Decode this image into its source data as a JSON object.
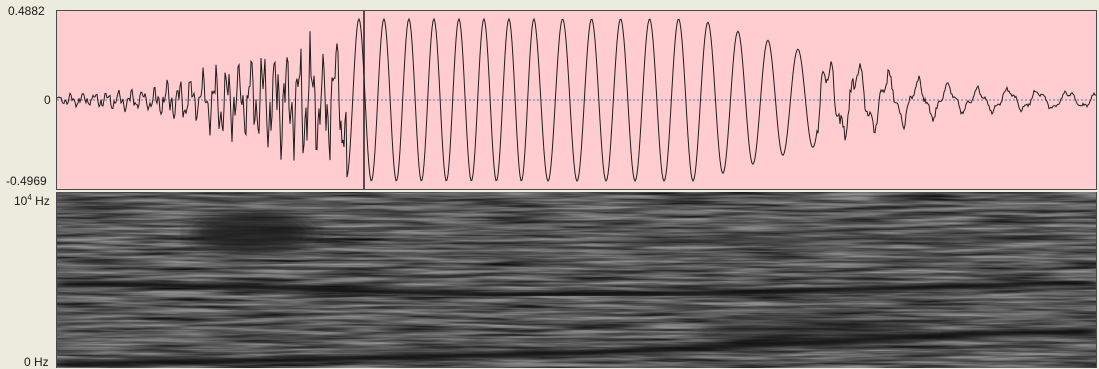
{
  "waveform": {
    "y_max_label": "0.4882",
    "y_zero_label": "0",
    "y_min_label": "-0.4969",
    "background_color": "#ffcccf",
    "line_color": "#1e1e1e",
    "zero_line_color": "#4f78b8"
  },
  "spectrogram": {
    "freq_top_base": "10",
    "freq_top_exp": "4",
    "freq_top_unit": " Hz",
    "freq_bottom_label": "0 Hz",
    "color_scale": "grayscale"
  }
}
